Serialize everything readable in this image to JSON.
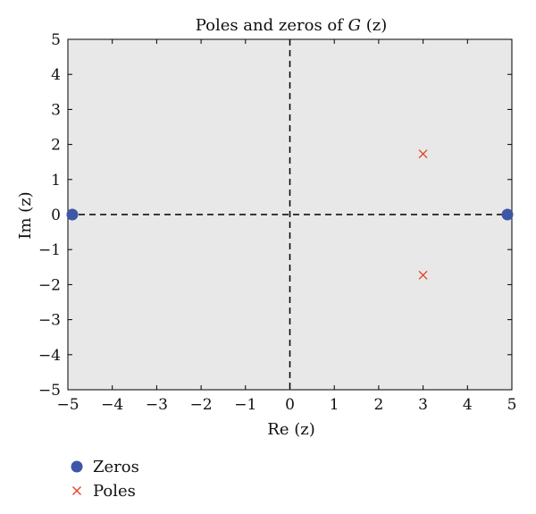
{
  "chart_data": {
    "type": "scatter",
    "title_main": "Poles and zeros of ",
    "title_italic": "G",
    "title_tail": " (z)",
    "xlabel": "Re (z)",
    "ylabel": "Im (z)",
    "xlim": [
      -5,
      5
    ],
    "ylim": [
      -5,
      5
    ],
    "xticks": [
      -5,
      -4,
      -3,
      -2,
      -1,
      0,
      1,
      2,
      3,
      4,
      5
    ],
    "yticks": [
      -5,
      -4,
      -3,
      -2,
      -1,
      0,
      1,
      2,
      3,
      4,
      5
    ],
    "xtick_labels": [
      "−5",
      "−4",
      "−3",
      "−2",
      "−1",
      "0",
      "1",
      "2",
      "3",
      "4",
      "5"
    ],
    "ytick_labels": [
      "−5",
      "−4",
      "−3",
      "−2",
      "−1",
      "0",
      "1",
      "2",
      "3",
      "4",
      "5"
    ],
    "grid": false,
    "plot_background": "#e8e8e8",
    "reference_lines": "dashed lines at x = 0 and y = 0",
    "legend_placement": "bottom-left, below plot",
    "series": [
      {
        "name": "Zeros",
        "marker": "filled-circle",
        "color": "#3d56a6",
        "points": [
          {
            "x": -4.9,
            "y": 0
          },
          {
            "x": 4.9,
            "y": 0
          }
        ]
      },
      {
        "name": "Poles",
        "marker": "x",
        "color": "#e0452b",
        "points": [
          {
            "x": 3.0,
            "y": 1.73
          },
          {
            "x": 3.0,
            "y": -1.73
          }
        ]
      }
    ]
  }
}
